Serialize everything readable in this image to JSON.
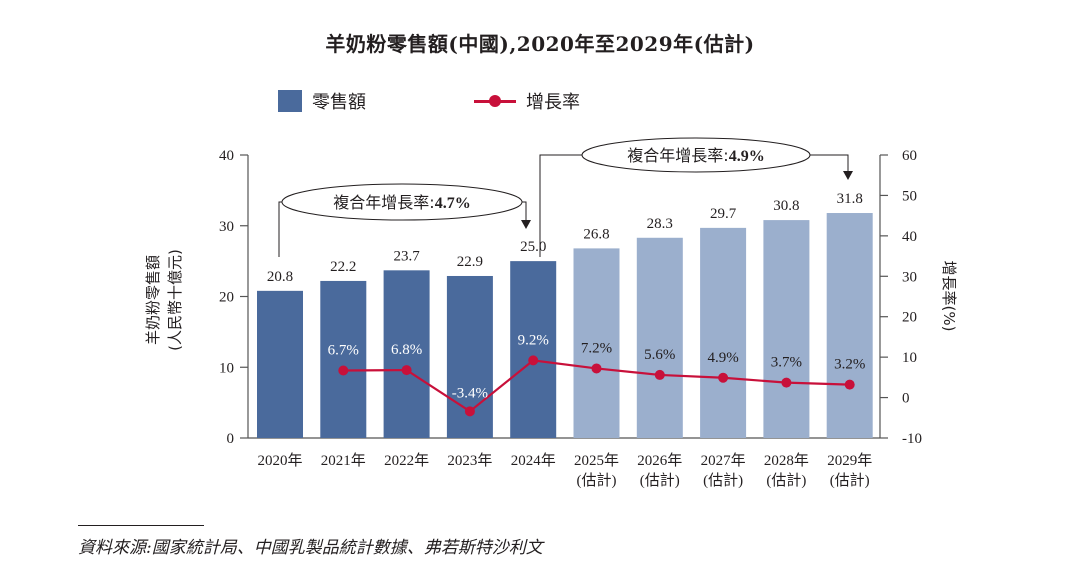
{
  "chart_data": {
    "type": "bar",
    "title": "羊奶粉零售額(中國),2020年至2029年(估計)",
    "categories": [
      "2020年",
      "2021年",
      "2022年",
      "2023年",
      "2024年",
      "2025年",
      "2026年",
      "2027年",
      "2028年",
      "2029年"
    ],
    "category_sublabels": [
      "",
      "",
      "",
      "",
      "",
      "(估計)",
      "(估計)",
      "(估計)",
      "(估計)",
      "(估計)"
    ],
    "series": [
      {
        "name": "零售額",
        "type": "bar",
        "axis": "left",
        "values": [
          20.8,
          22.2,
          23.7,
          22.9,
          25.0,
          26.8,
          28.3,
          29.7,
          30.8,
          31.8
        ],
        "labels": [
          "20.8",
          "22.2",
          "23.7",
          "22.9",
          "25.0",
          "26.8",
          "28.3",
          "29.7",
          "30.8",
          "31.8"
        ],
        "estimated": [
          false,
          false,
          false,
          false,
          false,
          true,
          true,
          true,
          true,
          true
        ]
      },
      {
        "name": "增長率",
        "type": "line",
        "axis": "right",
        "values": [
          null,
          6.7,
          6.8,
          -3.4,
          9.2,
          7.2,
          5.6,
          4.9,
          3.7,
          3.2
        ],
        "labels": [
          "",
          "6.7%",
          "6.8%",
          "-3.4%",
          "9.2%",
          "7.2%",
          "5.6%",
          "4.9%",
          "3.7%",
          "3.2%"
        ]
      }
    ],
    "ylabel": "羊奶粉零售額",
    "ylabel_unit": "(人民幣十億元)",
    "y2label": "增長率(%)",
    "ylim": [
      0,
      40
    ],
    "yticks": [
      0,
      10,
      20,
      30,
      40
    ],
    "y2lim": [
      -10,
      60
    ],
    "y2ticks": [
      -10,
      0,
      10,
      20,
      30,
      40,
      50,
      60
    ],
    "grid": false,
    "legend_position": "top-left",
    "annotations": [
      {
        "text_prefix": "複合年增長率:",
        "text_value": "4.7%",
        "from_category": "2020年",
        "to_category": "2024年"
      },
      {
        "text_prefix": "複合年增長率:",
        "text_value": "4.9%",
        "from_category": "2024年",
        "to_category": "2029年"
      }
    ],
    "source": "資料來源:國家統計局、中國乳製品統計數據、弗若斯特沙利文"
  },
  "legend": {
    "bar_label": "零售額",
    "line_label": "增長率"
  },
  "colors": {
    "bar_actual": "#4a6a9c",
    "bar_estimated": "#9bafcd",
    "line": "#c8103a",
    "axis": "#555555",
    "text": "#231f20",
    "label_on_dark": "#ffffff"
  }
}
